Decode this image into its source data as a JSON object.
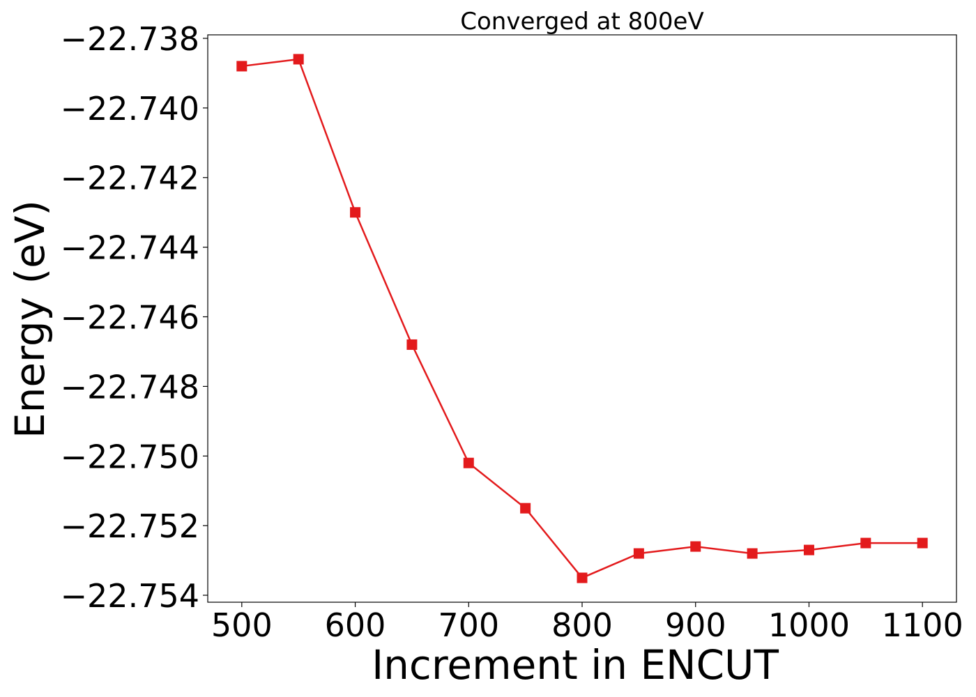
{
  "chart_data": {
    "type": "line",
    "title": "Converged at 800eV",
    "xlabel": "Increment in ENCUT",
    "ylabel": "Energy (eV)",
    "xlim": [
      470,
      1130
    ],
    "ylim": [
      -22.7542,
      -22.7379
    ],
    "x_ticks": [
      500,
      600,
      700,
      800,
      900,
      1000,
      1100
    ],
    "x_tick_labels": [
      "500",
      "600",
      "700",
      "800",
      "900",
      "1000",
      "1100"
    ],
    "y_ticks": [
      -22.738,
      -22.74,
      -22.742,
      -22.744,
      -22.746,
      -22.748,
      -22.75,
      -22.752,
      -22.754
    ],
    "y_tick_labels": [
      "−22.738",
      "−22.740",
      "−22.742",
      "−22.744",
      "−22.746",
      "−22.748",
      "−22.750",
      "−22.752",
      "−22.754"
    ],
    "grid": false,
    "legend": "none",
    "color": "#e31a1c",
    "marker": "square",
    "series": [
      {
        "x": [
          500,
          550,
          600,
          650,
          700,
          750,
          800,
          850,
          900,
          950,
          1000,
          1050,
          1100
        ],
        "y": [
          -22.7388,
          -22.7386,
          -22.743,
          -22.7468,
          -22.7502,
          -22.7515,
          -22.7535,
          -22.7528,
          -22.7526,
          -22.7528,
          -22.7527,
          -22.7525,
          -22.7525
        ]
      }
    ]
  }
}
